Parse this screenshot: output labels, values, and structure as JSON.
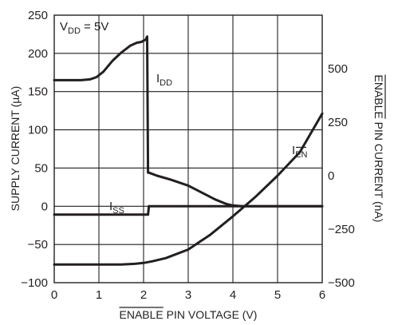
{
  "chart_data": {
    "type": "line",
    "xlabel": "ENABLE PIN VOLTAGE (V)",
    "xlabel_overline": "ENABLE",
    "ylabel": "SUPPLY CURRENT (µA)",
    "y2label": "ENABLE PIN CURRENT (nA)",
    "y2label_overline": "ENABLE",
    "xlim": [
      0,
      6
    ],
    "ylim": [
      -100,
      250
    ],
    "y2lim": [
      -500,
      750
    ],
    "x_ticks": [
      "0",
      "1",
      "2",
      "3",
      "4",
      "5",
      "6"
    ],
    "y_ticks": [
      "250",
      "200",
      "150",
      "100",
      "50",
      "0",
      "−50",
      "−100"
    ],
    "y_tick_values": [
      250,
      200,
      150,
      100,
      50,
      0,
      -50,
      -100
    ],
    "y2_ticks": [
      "500",
      "250",
      "0",
      "−250",
      "−500"
    ],
    "y2_tick_values": [
      500,
      250,
      0,
      -250,
      -500
    ],
    "grid": true,
    "condition_text": "V",
    "condition_sub": "DD",
    "condition_rest": " = 5V",
    "series": [
      {
        "name": "IDD",
        "label_main": "I",
        "label_sub": "DD",
        "axis": "left",
        "x": [
          0,
          0.3,
          0.6,
          0.8,
          0.95,
          1.1,
          1.3,
          1.5,
          1.7,
          1.85,
          1.95,
          2.05,
          2.08,
          2.1,
          2.12,
          2.3,
          2.6,
          3.0,
          3.3,
          3.6,
          3.85,
          4.0,
          4.2,
          4.5,
          5.0,
          5.5,
          6.0
        ],
        "y": [
          165,
          165,
          165,
          166,
          169,
          176,
          190,
          201,
          210,
          214,
          215,
          218,
          222,
          44,
          44,
          40,
          35,
          27,
          18,
          9,
          3,
          1,
          0,
          0,
          0,
          0,
          0
        ]
      },
      {
        "name": "ISS",
        "label_main": "I",
        "label_sub": "SS",
        "axis": "left",
        "x": [
          0,
          0.5,
          1.0,
          1.5,
          2.0,
          2.1,
          2.12,
          2.5,
          3.0,
          4.0,
          5.0,
          6.0
        ],
        "y": [
          -11,
          -11,
          -11,
          -11,
          -11,
          -11,
          0,
          0,
          0,
          0,
          0,
          0
        ]
      },
      {
        "name": "IEN",
        "label_main": "I",
        "label_sub": "EN",
        "axis": "right",
        "x": [
          0,
          0.5,
          1.0,
          1.5,
          1.8,
          2.0,
          2.2,
          2.5,
          3.0,
          3.5,
          4.0,
          4.5,
          5.0,
          5.5,
          6.0
        ],
        "y": [
          -415,
          -415,
          -415,
          -415,
          -412,
          -408,
          -400,
          -385,
          -345,
          -275,
          -190,
          -100,
          0,
          110,
          290
        ]
      }
    ]
  }
}
